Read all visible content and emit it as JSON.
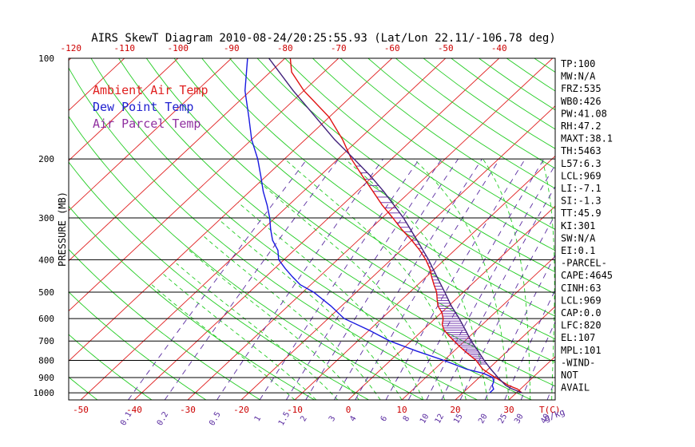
{
  "colors": {
    "background": "#ffffff",
    "frame": "#000000",
    "isobar": "#000000",
    "isotherm": "#e02020",
    "dry_adiabat": "#22cc22",
    "moist_adiabat": "#22cc22",
    "mixing_ratio": "#5a2ca0",
    "ambient_temp": "#e01010",
    "dew_point": "#1818e0",
    "parcel": "#40207a",
    "cape_hatch": "#6a28a8",
    "top_axis": "#cc0000",
    "bottom_axis": "#cc0000",
    "legend_ambient": "#e02020",
    "legend_dew": "#2020d0",
    "legend_parcel": "#9030a0"
  },
  "chart_data": {
    "type": "line",
    "title": "AIRS SkewT Diagram 2010-08-24/20:25:55.93 (Lat/Lon 22.11/-106.78 deg)",
    "ylabel": "PRESSURE (MB)",
    "xlabel_bottom_unit": "T(C)",
    "mixing_ratio_unit": "g/kg",
    "y_scale": "log",
    "ylim": [
      1050,
      100
    ],
    "pressure_ticks": [
      100,
      200,
      300,
      400,
      500,
      600,
      700,
      800,
      900,
      1000
    ],
    "bottom_ticks": [
      -50,
      -40,
      -30,
      -20,
      -10,
      0,
      10,
      20,
      30
    ],
    "top_ticks": [
      -120,
      -110,
      -100,
      -90,
      -80,
      -70,
      -60,
      -50,
      -40
    ],
    "mixing_ratio_labels": [
      "0.1",
      "0.2",
      "0.5",
      "1",
      "1.5",
      "2",
      "3",
      "4",
      "6",
      "8",
      "10",
      "12",
      "15",
      "20",
      "25",
      "30",
      "40"
    ],
    "legend": [
      "Ambient Air Temp",
      "Dew Point Temp",
      "Air Parcel Temp"
    ],
    "series": [
      {
        "name": "Ambient Air Temp",
        "points": [
          [
            1000,
            31
          ],
          [
            975,
            29.5
          ],
          [
            950,
            27
          ],
          [
            925,
            25
          ],
          [
            900,
            23
          ],
          [
            875,
            21
          ],
          [
            850,
            19
          ],
          [
            825,
            17.5
          ],
          [
            800,
            16
          ],
          [
            775,
            14
          ],
          [
            750,
            12
          ],
          [
            725,
            10
          ],
          [
            700,
            8
          ],
          [
            675,
            6
          ],
          [
            650,
            4
          ],
          [
            625,
            2.5
          ],
          [
            600,
            1.5
          ],
          [
            575,
            0
          ],
          [
            550,
            -2
          ],
          [
            525,
            -3.5
          ],
          [
            500,
            -5
          ],
          [
            475,
            -7
          ],
          [
            450,
            -9
          ],
          [
            425,
            -11
          ],
          [
            400,
            -13.5
          ],
          [
            375,
            -16.5
          ],
          [
            350,
            -20
          ],
          [
            325,
            -24
          ],
          [
            300,
            -28
          ],
          [
            275,
            -32.5
          ],
          [
            250,
            -37
          ],
          [
            225,
            -42
          ],
          [
            200,
            -47.5
          ],
          [
            175,
            -53
          ],
          [
            150,
            -60
          ],
          [
            125,
            -70
          ],
          [
            110,
            -76
          ],
          [
            100,
            -79
          ]
        ]
      },
      {
        "name": "Dew Point Temp",
        "points": [
          [
            1000,
            25
          ],
          [
            975,
            25
          ],
          [
            950,
            24
          ],
          [
            925,
            23.5
          ],
          [
            900,
            22.5
          ],
          [
            875,
            20
          ],
          [
            850,
            16
          ],
          [
            800,
            10
          ],
          [
            750,
            3
          ],
          [
            700,
            -4
          ],
          [
            650,
            -10
          ],
          [
            600,
            -17
          ],
          [
            550,
            -22
          ],
          [
            500,
            -28
          ],
          [
            475,
            -32
          ],
          [
            450,
            -35
          ],
          [
            425,
            -38
          ],
          [
            400,
            -41
          ],
          [
            375,
            -43
          ],
          [
            350,
            -46
          ],
          [
            325,
            -48.5
          ],
          [
            300,
            -51
          ],
          [
            275,
            -54
          ],
          [
            250,
            -57.5
          ],
          [
            225,
            -61
          ],
          [
            200,
            -65
          ],
          [
            175,
            -70
          ],
          [
            150,
            -75
          ],
          [
            125,
            -81
          ],
          [
            100,
            -87
          ]
        ]
      },
      {
        "name": "Air Parcel Temp",
        "points": [
          [
            1000,
            31
          ],
          [
            969,
            28
          ],
          [
            950,
            26.5
          ],
          [
            900,
            23.5
          ],
          [
            850,
            20.5
          ],
          [
            800,
            17.5
          ],
          [
            750,
            14.5
          ],
          [
            700,
            11.2
          ],
          [
            650,
            8
          ],
          [
            600,
            4.5
          ],
          [
            550,
            0.5
          ],
          [
            500,
            -3.5
          ],
          [
            450,
            -8
          ],
          [
            400,
            -13
          ],
          [
            350,
            -19
          ],
          [
            300,
            -26
          ],
          [
            250,
            -35
          ],
          [
            225,
            -40.5
          ],
          [
            200,
            -47
          ],
          [
            175,
            -54.5
          ],
          [
            150,
            -62.5
          ],
          [
            125,
            -72
          ],
          [
            100,
            -83
          ]
        ]
      }
    ]
  },
  "indices": [
    "TP:100",
    "MW:N/A",
    "FRZ:535",
    "WB0:426",
    "PW:41.08",
    "RH:47.2",
    "MAXT:38.1",
    "TH:5463",
    "L57:6.3",
    "LCL:969",
    "LI:-7.1",
    "SI:-1.3",
    "TT:45.9",
    "KI:301",
    "SW:N/A",
    "EI:0.1",
    "-PARCEL-",
    "CAPE:4645",
    "CINH:63",
    "LCL:969",
    "CAP:0.0",
    "LFC:820",
    "EL:107",
    "MPL:101",
    "-WIND-",
    "NOT",
    "AVAIL"
  ]
}
